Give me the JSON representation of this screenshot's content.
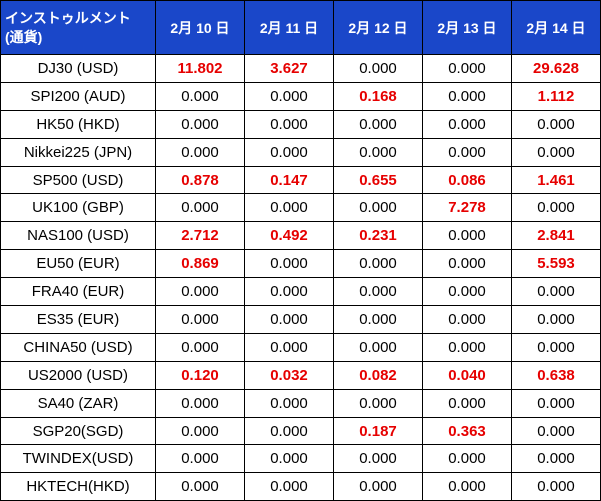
{
  "header": {
    "instrument_line1": "インストゥルメント",
    "instrument_line2": "(通貨)",
    "dates": [
      "2月 10 日",
      "2月 11 日",
      "2月 12 日",
      "2月 13 日",
      "2月 14 日"
    ]
  },
  "colors": {
    "header_bg": "#1a47c9",
    "header_text": "#ffffff",
    "highlight": "#e60000",
    "normal": "#000000"
  },
  "rows": [
    {
      "name": "DJ30 (USD)",
      "values": [
        "11.802",
        "3.627",
        "0.000",
        "0.000",
        "29.628"
      ]
    },
    {
      "name": "SPI200 (AUD)",
      "values": [
        "0.000",
        "0.000",
        "0.168",
        "0.000",
        "1.112"
      ]
    },
    {
      "name": "HK50 (HKD)",
      "values": [
        "0.000",
        "0.000",
        "0.000",
        "0.000",
        "0.000"
      ]
    },
    {
      "name": "Nikkei225 (JPN)",
      "values": [
        "0.000",
        "0.000",
        "0.000",
        "0.000",
        "0.000"
      ]
    },
    {
      "name": "SP500 (USD)",
      "values": [
        "0.878",
        "0.147",
        "0.655",
        "0.086",
        "1.461"
      ]
    },
    {
      "name": "UK100 (GBP)",
      "values": [
        "0.000",
        "0.000",
        "0.000",
        "7.278",
        "0.000"
      ]
    },
    {
      "name": "NAS100 (USD)",
      "values": [
        "2.712",
        "0.492",
        "0.231",
        "0.000",
        "2.841"
      ]
    },
    {
      "name": "EU50 (EUR)",
      "values": [
        "0.869",
        "0.000",
        "0.000",
        "0.000",
        "5.593"
      ]
    },
    {
      "name": "FRA40 (EUR)",
      "values": [
        "0.000",
        "0.000",
        "0.000",
        "0.000",
        "0.000"
      ]
    },
    {
      "name": "ES35 (EUR)",
      "values": [
        "0.000",
        "0.000",
        "0.000",
        "0.000",
        "0.000"
      ]
    },
    {
      "name": "CHINA50 (USD)",
      "values": [
        "0.000",
        "0.000",
        "0.000",
        "0.000",
        "0.000"
      ]
    },
    {
      "name": "US2000 (USD)",
      "values": [
        "0.120",
        "0.032",
        "0.082",
        "0.040",
        "0.638"
      ]
    },
    {
      "name": "SA40 (ZAR)",
      "values": [
        "0.000",
        "0.000",
        "0.000",
        "0.000",
        "0.000"
      ]
    },
    {
      "name": "SGP20(SGD)",
      "values": [
        "0.000",
        "0.000",
        "0.187",
        "0.363",
        "0.000"
      ]
    },
    {
      "name": "TWINDEX(USD)",
      "values": [
        "0.000",
        "0.000",
        "0.000",
        "0.000",
        "0.000"
      ]
    },
    {
      "name": "HKTECH(HKD)",
      "values": [
        "0.000",
        "0.000",
        "0.000",
        "0.000",
        "0.000"
      ]
    }
  ]
}
